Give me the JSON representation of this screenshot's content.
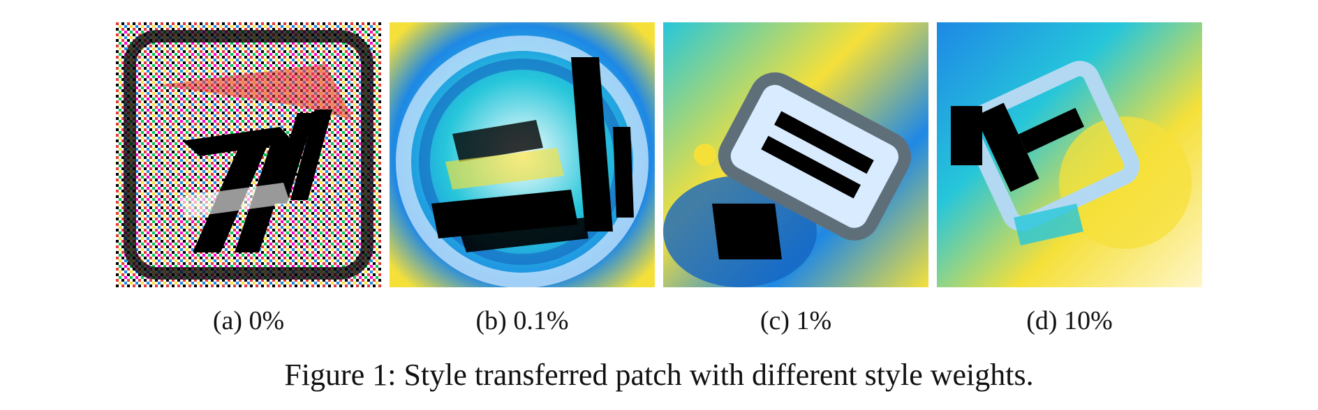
{
  "figure": {
    "caption": "Figure 1: Style transferred patch with different style weights.",
    "panels": [
      {
        "label": "(a) 0%",
        "image": "noisy-adversarial-patch-with-seven-shape"
      },
      {
        "label": "(b) 0.1%",
        "image": "blue-swirl-patch-with-dark-bars"
      },
      {
        "label": "(c) 1%",
        "image": "blue-yellow-patch-with-rectangular-frame"
      },
      {
        "label": "(d) 10%",
        "image": "yellow-blue-patch-with-rotated-square"
      }
    ],
    "palette": {
      "black": "#000000",
      "blue": "#1e88e5",
      "cyan": "#26c6da",
      "yellow": "#f5e03a",
      "red": "#e53935",
      "white": "#ffffff"
    }
  }
}
